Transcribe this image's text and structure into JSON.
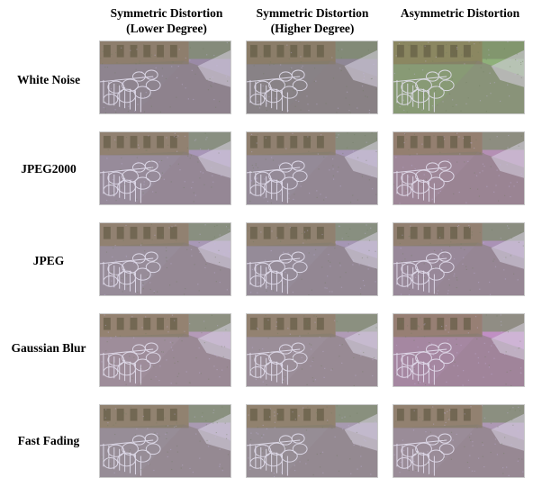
{
  "columns": [
    {
      "line1": "Symmetric Distortion",
      "line2": "(Lower Degree)"
    },
    {
      "line1": "Symmetric Distortion",
      "line2": "(Higher Degree)"
    },
    {
      "line1": "Asymmetric Distortion",
      "line2": ""
    }
  ],
  "rows": [
    {
      "label": "White Noise"
    },
    {
      "label": "JPEG2000"
    },
    {
      "label": "JPEG"
    },
    {
      "label": "Gaussian Blur"
    },
    {
      "label": "Fast Fading"
    }
  ],
  "image_tints": [
    [
      "#9a8aa6",
      "#8f8796",
      "#8fb07a"
    ],
    [
      "#a896b8",
      "#a495b3",
      "#b48fb4"
    ],
    [
      "#a898b6",
      "#a596b4",
      "#aa92b6"
    ],
    [
      "#b49ab8",
      "#b09bb6",
      "#c08fc4"
    ],
    [
      "#a99ab2",
      "#a79ab0",
      "#ad98b4"
    ]
  ]
}
